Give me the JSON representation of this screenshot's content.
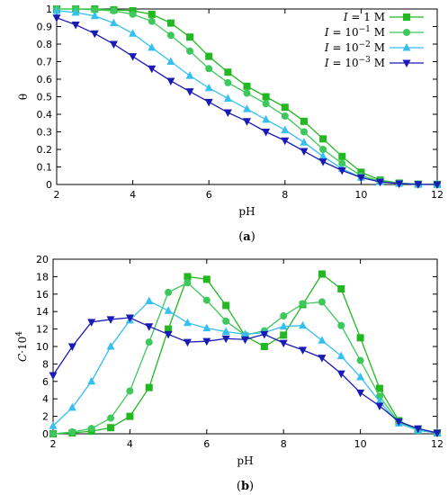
{
  "chart_data": [
    {
      "type": "line",
      "caption": "(a)",
      "xlabel": "pH",
      "ylabel": "θ",
      "xlim": [
        2,
        12
      ],
      "ylim": [
        0,
        1
      ],
      "xticks": [
        2,
        4,
        6,
        8,
        10,
        12
      ],
      "yticks": [
        0,
        0.1,
        0.2,
        0.3,
        0.4,
        0.5,
        0.6,
        0.7,
        0.8,
        0.9,
        1
      ],
      "grid": false,
      "legend": "top-right",
      "series": [
        {
          "label": "I = 1 M",
          "color": "#21b821",
          "marker": "square",
          "x": [
            2,
            2.5,
            3,
            3.5,
            4,
            4.5,
            5,
            5.5,
            6,
            6.5,
            7,
            7.5,
            8,
            8.5,
            9,
            9.5,
            10,
            10.5,
            11,
            11.5,
            12
          ],
          "y": [
            1,
            1,
            1,
            0.995,
            0.99,
            0.97,
            0.92,
            0.84,
            0.73,
            0.64,
            0.56,
            0.5,
            0.44,
            0.36,
            0.26,
            0.16,
            0.07,
            0.025,
            0.008,
            0.002,
            0.001
          ]
        },
        {
          "label": "I = 10^-1 M",
          "color": "#3cc85a",
          "marker": "circle",
          "x": [
            2,
            2.5,
            3,
            3.5,
            4,
            4.5,
            5,
            5.5,
            6,
            6.5,
            7,
            7.5,
            8,
            8.5,
            9,
            9.5,
            10,
            10.5,
            11,
            11.5,
            12
          ],
          "y": [
            1,
            1,
            0.995,
            0.99,
            0.97,
            0.93,
            0.85,
            0.76,
            0.66,
            0.58,
            0.52,
            0.46,
            0.39,
            0.3,
            0.2,
            0.12,
            0.05,
            0.02,
            0.006,
            0.002,
            0.001
          ]
        },
        {
          "label": "I = 10^-2 M",
          "color": "#34c0f0",
          "marker": "triangle-up",
          "x": [
            2,
            2.5,
            3,
            3.5,
            4,
            4.5,
            5,
            5.5,
            6,
            6.5,
            7,
            7.5,
            8,
            8.5,
            9,
            9.5,
            10,
            10.5,
            11,
            11.5,
            12
          ],
          "y": [
            0.99,
            0.98,
            0.96,
            0.92,
            0.86,
            0.78,
            0.7,
            0.62,
            0.55,
            0.49,
            0.43,
            0.37,
            0.31,
            0.24,
            0.16,
            0.09,
            0.04,
            0.015,
            0.005,
            0.001,
            0
          ]
        },
        {
          "label": "I = 10^-3 M",
          "color": "#1a1ab4",
          "marker": "triangle-down",
          "x": [
            2,
            2.5,
            3,
            3.5,
            4,
            4.5,
            5,
            5.5,
            6,
            6.5,
            7,
            7.5,
            8,
            8.5,
            9,
            9.5,
            10,
            10.5,
            11,
            11.5,
            12
          ],
          "y": [
            0.95,
            0.91,
            0.86,
            0.8,
            0.73,
            0.66,
            0.59,
            0.53,
            0.47,
            0.41,
            0.36,
            0.3,
            0.25,
            0.19,
            0.13,
            0.08,
            0.04,
            0.015,
            0.005,
            0.001,
            0
          ]
        }
      ]
    },
    {
      "type": "line",
      "caption": "(b)",
      "xlabel": "pH",
      "ylabel_main": "C·10",
      "ylabel_exp": "4",
      "xlim": [
        2,
        12
      ],
      "ylim": [
        0,
        20
      ],
      "xticks": [
        2,
        4,
        6,
        8,
        10,
        12
      ],
      "yticks": [
        0,
        2,
        4,
        6,
        8,
        10,
        12,
        14,
        16,
        18,
        20
      ],
      "grid": false,
      "series": [
        {
          "label": "I = 1 M",
          "color": "#21b821",
          "marker": "square",
          "x": [
            2,
            2.5,
            3,
            3.5,
            4,
            4.5,
            5,
            5.5,
            6,
            6.5,
            7,
            7.5,
            8,
            8.5,
            9,
            9.5,
            10,
            10.5,
            11,
            11.5,
            12
          ],
          "y": [
            0,
            0.1,
            0.3,
            0.7,
            2,
            5.3,
            12,
            18,
            17.7,
            14.7,
            11.2,
            10,
            11.3,
            14.8,
            18.3,
            16.6,
            11,
            5.2,
            1.5,
            0.4,
            0.1
          ]
        },
        {
          "label": "I = 10^-1 M",
          "color": "#3cc85a",
          "marker": "circle",
          "x": [
            2,
            2.5,
            3,
            3.5,
            4,
            4.5,
            5,
            5.5,
            6,
            6.5,
            7,
            7.5,
            8,
            8.5,
            9,
            9.5,
            10,
            10.5,
            11,
            11.5,
            12
          ],
          "y": [
            0,
            0.2,
            0.6,
            1.8,
            4.9,
            10.5,
            16.2,
            17.3,
            15.3,
            12.9,
            11.3,
            11.8,
            13.5,
            14.9,
            15.1,
            12.4,
            8.4,
            4.3,
            1.3,
            0.4,
            0.1
          ]
        },
        {
          "label": "I = 10^-2 M",
          "color": "#34c0f0",
          "marker": "triangle-up",
          "x": [
            2,
            2.5,
            3,
            3.5,
            4,
            4.5,
            5,
            5.5,
            6,
            6.5,
            7,
            7.5,
            8,
            8.5,
            9,
            9.5,
            10,
            10.5,
            11,
            11.5,
            12
          ],
          "y": [
            0.9,
            3,
            6,
            10,
            13,
            15.2,
            14.1,
            12.7,
            12.1,
            11.7,
            11.4,
            11.6,
            12.3,
            12.4,
            10.7,
            8.9,
            6.5,
            3.7,
            1.2,
            0.4,
            0.1
          ]
        },
        {
          "label": "I = 10^-3 M",
          "color": "#1a1ab4",
          "marker": "triangle-down",
          "x": [
            2,
            2.5,
            3,
            3.5,
            4,
            4.5,
            5,
            5.5,
            6,
            6.5,
            7,
            7.5,
            8,
            8.5,
            9,
            9.5,
            10,
            10.5,
            11,
            11.5,
            12
          ],
          "y": [
            6.7,
            10,
            12.8,
            13.1,
            13.3,
            12.3,
            11.4,
            10.5,
            10.6,
            10.9,
            10.8,
            11.4,
            10.4,
            9.6,
            8.7,
            6.9,
            4.7,
            3.2,
            1.4,
            0.6,
            0.1
          ]
        }
      ]
    }
  ],
  "legend": {
    "entries": [
      {
        "var": "I",
        "eq": " = ",
        "base": "1",
        "exp": "",
        "unit": "M"
      },
      {
        "var": "I",
        "eq": " = ",
        "base": "10",
        "exp": "−1",
        "unit": "M"
      },
      {
        "var": "I",
        "eq": " = ",
        "base": "10",
        "exp": "−2",
        "unit": "M"
      },
      {
        "var": "I",
        "eq": " = ",
        "base": "10",
        "exp": "−3",
        "unit": "M"
      }
    ]
  }
}
